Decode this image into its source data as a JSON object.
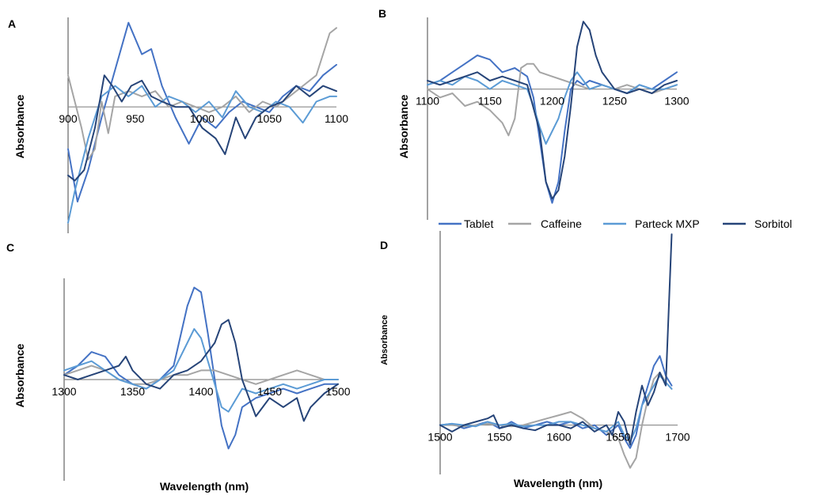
{
  "legend": {
    "placement": "top-right",
    "entries": [
      {
        "name": "Tablet",
        "color": "#4472C4"
      },
      {
        "name": "Caffeine",
        "color": "#A5A5A5"
      },
      {
        "name": "Parteck MXP",
        "color": "#5B9BD5"
      },
      {
        "name": "Sorbitol",
        "color": "#264478"
      }
    ]
  },
  "chart_data": [
    {
      "type": "line",
      "panel": "A",
      "ylabel": "Absorbance",
      "xlabel": "",
      "x_ticks": [
        "900",
        "950",
        "1000",
        "1050",
        "1100"
      ],
      "xlim": [
        900,
        1100
      ],
      "ylim": [
        -1.2,
        0.85
      ],
      "grid": false,
      "series": [
        {
          "name": "Tablet",
          "x": [
            900,
            907,
            915,
            925,
            935,
            945,
            955,
            962,
            970,
            980,
            990,
            1000,
            1010,
            1020,
            1030,
            1040,
            1050,
            1060,
            1070,
            1080,
            1090,
            1100
          ],
          "y": [
            -0.4,
            -0.9,
            -0.6,
            -0.1,
            0.35,
            0.8,
            0.5,
            0.55,
            0.2,
            -0.1,
            -0.35,
            -0.1,
            -0.2,
            -0.05,
            0.05,
            0.0,
            -0.05,
            0.1,
            0.2,
            0.15,
            0.3,
            0.4
          ]
        },
        {
          "name": "Caffeine",
          "x": [
            900,
            910,
            915,
            920,
            925,
            930,
            935,
            945,
            955,
            965,
            975,
            985,
            995,
            1005,
            1015,
            1025,
            1035,
            1045,
            1055,
            1065,
            1075,
            1085,
            1095,
            1100
          ],
          "y": [
            0.3,
            -0.2,
            -0.5,
            -0.4,
            0.05,
            -0.25,
            0.1,
            0.15,
            0.1,
            0.15,
            0.0,
            0.05,
            0.0,
            -0.05,
            0.0,
            0.1,
            -0.05,
            0.05,
            0.0,
            0.1,
            0.2,
            0.3,
            0.7,
            0.75
          ]
        },
        {
          "name": "Parteck MXP",
          "x": [
            900,
            905,
            915,
            925,
            935,
            945,
            955,
            965,
            975,
            985,
            995,
            1005,
            1015,
            1025,
            1035,
            1045,
            1055,
            1065,
            1075,
            1085,
            1095,
            1100
          ],
          "y": [
            -1.1,
            -0.8,
            -0.3,
            0.1,
            0.2,
            0.1,
            0.2,
            0.0,
            0.1,
            0.05,
            -0.05,
            0.05,
            -0.1,
            0.15,
            0.0,
            -0.05,
            0.05,
            0.0,
            -0.15,
            0.05,
            0.1,
            0.1
          ]
        },
        {
          "name": "Sorbitol",
          "x": [
            900,
            905,
            912,
            920,
            927,
            933,
            940,
            947,
            955,
            962,
            970,
            980,
            990,
            1000,
            1010,
            1017,
            1025,
            1032,
            1040,
            1050,
            1060,
            1070,
            1080,
            1090,
            1100
          ],
          "y": [
            -0.65,
            -0.7,
            -0.6,
            -0.2,
            0.3,
            0.2,
            0.05,
            0.2,
            0.25,
            0.1,
            0.05,
            0.0,
            0.0,
            -0.2,
            -0.3,
            -0.45,
            -0.1,
            -0.3,
            -0.1,
            0.0,
            0.05,
            0.2,
            0.1,
            0.2,
            0.15
          ]
        }
      ]
    },
    {
      "type": "line",
      "panel": "B",
      "ylabel": "Absorbance",
      "xlabel": "",
      "x_ticks": [
        "1100",
        "1150",
        "1200",
        "1250",
        "1300"
      ],
      "xlim": [
        1100,
        1300
      ],
      "ylim": [
        -1.55,
        0.85
      ],
      "grid": false,
      "series": [
        {
          "name": "Tablet",
          "x": [
            1100,
            1110,
            1120,
            1130,
            1140,
            1150,
            1160,
            1170,
            1180,
            1185,
            1190,
            1195,
            1200,
            1205,
            1210,
            1215,
            1220,
            1225,
            1230,
            1240,
            1250,
            1260,
            1270,
            1280,
            1290,
            1300
          ],
          "y": [
            0.05,
            0.1,
            0.2,
            0.3,
            0.4,
            0.35,
            0.2,
            0.25,
            0.15,
            -0.1,
            -0.6,
            -1.1,
            -1.35,
            -1.1,
            -0.5,
            0.0,
            0.1,
            0.05,
            0.1,
            0.05,
            0.0,
            -0.05,
            0.05,
            0.0,
            0.1,
            0.2
          ]
        },
        {
          "name": "Caffeine",
          "x": [
            1100,
            1110,
            1120,
            1130,
            1140,
            1150,
            1160,
            1165,
            1170,
            1175,
            1180,
            1185,
            1190,
            1200,
            1210,
            1220,
            1230,
            1240,
            1250,
            1260,
            1270,
            1280,
            1290,
            1300
          ],
          "y": [
            0.0,
            -0.1,
            -0.05,
            -0.2,
            -0.15,
            -0.25,
            -0.4,
            -0.55,
            -0.35,
            0.25,
            0.3,
            0.3,
            0.2,
            0.15,
            0.1,
            0.05,
            0.0,
            0.05,
            0.0,
            0.05,
            0.0,
            -0.05,
            0.0,
            0.05
          ]
        },
        {
          "name": "Parteck MXP",
          "x": [
            1100,
            1110,
            1120,
            1130,
            1140,
            1150,
            1160,
            1170,
            1180,
            1185,
            1190,
            1195,
            1200,
            1205,
            1210,
            1215,
            1220,
            1225,
            1230,
            1240,
            1250,
            1260,
            1270,
            1280,
            1290,
            1300
          ],
          "y": [
            0.05,
            0.1,
            0.05,
            0.15,
            0.1,
            0.0,
            0.1,
            0.05,
            0.0,
            -0.2,
            -0.45,
            -0.65,
            -0.5,
            -0.35,
            -0.1,
            0.1,
            0.2,
            0.1,
            0.0,
            0.05,
            0.0,
            -0.05,
            0.05,
            0.0,
            0.0,
            0.05
          ]
        },
        {
          "name": "Sorbitol",
          "x": [
            1100,
            1110,
            1120,
            1130,
            1140,
            1150,
            1160,
            1170,
            1180,
            1190,
            1195,
            1200,
            1205,
            1210,
            1215,
            1220,
            1225,
            1230,
            1235,
            1240,
            1250,
            1260,
            1270,
            1280,
            1290,
            1300
          ],
          "y": [
            0.1,
            0.05,
            0.1,
            0.15,
            0.2,
            0.1,
            0.15,
            0.1,
            0.05,
            -0.5,
            -1.1,
            -1.3,
            -1.2,
            -0.8,
            -0.2,
            0.5,
            0.8,
            0.7,
            0.4,
            0.2,
            0.0,
            -0.05,
            0.0,
            -0.05,
            0.05,
            0.1
          ]
        }
      ]
    },
    {
      "type": "line",
      "panel": "C",
      "ylabel": "Absorbance",
      "xlabel": "Wavelength (nm)",
      "x_ticks": [
        "1300",
        "1350",
        "1400",
        "1450",
        "1500"
      ],
      "xlim": [
        1300,
        1500
      ],
      "ylim": [
        -1.1,
        1.1
      ],
      "grid": false,
      "series": [
        {
          "name": "Tablet",
          "x": [
            1300,
            1310,
            1320,
            1330,
            1340,
            1350,
            1360,
            1370,
            1380,
            1390,
            1395,
            1400,
            1405,
            1410,
            1415,
            1420,
            1425,
            1430,
            1440,
            1450,
            1460,
            1470,
            1480,
            1490,
            1500
          ],
          "y": [
            0.05,
            0.15,
            0.3,
            0.25,
            0.05,
            -0.05,
            -0.1,
            0.0,
            0.15,
            0.8,
            1.0,
            0.95,
            0.5,
            0.0,
            -0.5,
            -0.75,
            -0.6,
            -0.3,
            -0.2,
            -0.15,
            -0.1,
            -0.15,
            -0.1,
            -0.05,
            -0.05
          ]
        },
        {
          "name": "Caffeine",
          "x": [
            1300,
            1310,
            1320,
            1330,
            1340,
            1350,
            1360,
            1370,
            1380,
            1390,
            1400,
            1410,
            1420,
            1430,
            1440,
            1450,
            1460,
            1470,
            1480,
            1490,
            1500
          ],
          "y": [
            0.05,
            0.1,
            0.15,
            0.1,
            0.0,
            -0.05,
            -0.05,
            0.0,
            0.05,
            0.05,
            0.1,
            0.1,
            0.05,
            0.0,
            -0.05,
            0.0,
            0.05,
            0.1,
            0.05,
            0.0,
            0.0
          ]
        },
        {
          "name": "Parteck MXP",
          "x": [
            1300,
            1310,
            1320,
            1330,
            1340,
            1350,
            1360,
            1370,
            1380,
            1390,
            1395,
            1400,
            1405,
            1410,
            1415,
            1420,
            1430,
            1440,
            1450,
            1460,
            1470,
            1480,
            1490,
            1500
          ],
          "y": [
            0.1,
            0.15,
            0.2,
            0.1,
            0.0,
            -0.05,
            -0.1,
            0.0,
            0.1,
            0.4,
            0.55,
            0.45,
            0.2,
            -0.05,
            -0.3,
            -0.35,
            -0.1,
            -0.15,
            -0.1,
            -0.05,
            -0.1,
            -0.05,
            0.0,
            0.0
          ]
        },
        {
          "name": "Sorbitol",
          "x": [
            1300,
            1310,
            1320,
            1330,
            1340,
            1345,
            1350,
            1360,
            1370,
            1380,
            1390,
            1400,
            1410,
            1415,
            1420,
            1425,
            1430,
            1440,
            1450,
            1460,
            1470,
            1475,
            1480,
            1490,
            1500
          ],
          "y": [
            0.05,
            0.0,
            0.05,
            0.1,
            0.15,
            0.25,
            0.1,
            -0.05,
            -0.1,
            0.05,
            0.1,
            0.2,
            0.4,
            0.6,
            0.65,
            0.4,
            0.0,
            -0.4,
            -0.2,
            -0.3,
            -0.2,
            -0.45,
            -0.3,
            -0.15,
            -0.05
          ]
        }
      ]
    },
    {
      "type": "line",
      "panel": "D",
      "ylabel": "Absorbance",
      "xlabel": "Wavelength (nm)",
      "x_ticks": [
        "1500",
        "1550",
        "1600",
        "1650",
        "1700"
      ],
      "xlim": [
        1500,
        1700
      ],
      "ylim": [
        -0.75,
        2.95
      ],
      "grid": false,
      "series": [
        {
          "name": "Tablet",
          "x": [
            1500,
            1510,
            1520,
            1530,
            1540,
            1550,
            1560,
            1570,
            1580,
            1590,
            1600,
            1610,
            1620,
            1630,
            1640,
            1650,
            1655,
            1660,
            1665,
            1670,
            1675,
            1680,
            1685,
            1690,
            1695
          ],
          "y": [
            0.0,
            0.02,
            -0.05,
            0.0,
            0.05,
            -0.05,
            0.05,
            -0.05,
            0.0,
            0.05,
            0.0,
            0.05,
            -0.05,
            0.0,
            -0.15,
            0.0,
            -0.2,
            -0.35,
            -0.15,
            0.3,
            0.6,
            0.9,
            1.05,
            0.75,
            0.6
          ]
        },
        {
          "name": "Caffeine",
          "x": [
            1500,
            1510,
            1520,
            1530,
            1540,
            1550,
            1560,
            1570,
            1580,
            1590,
            1600,
            1610,
            1620,
            1630,
            1640,
            1650,
            1655,
            1660,
            1665,
            1670,
            1675,
            1680,
            1685,
            1690,
            1695
          ],
          "y": [
            0.0,
            0.0,
            -0.02,
            0.0,
            0.02,
            0.0,
            -0.02,
            0.0,
            0.05,
            0.1,
            0.15,
            0.2,
            0.1,
            -0.05,
            -0.1,
            -0.2,
            -0.45,
            -0.65,
            -0.5,
            0.0,
            0.4,
            0.7,
            0.8,
            0.65,
            0.55
          ]
        },
        {
          "name": "Parteck MXP",
          "x": [
            1500,
            1510,
            1520,
            1530,
            1540,
            1550,
            1560,
            1570,
            1580,
            1590,
            1600,
            1610,
            1620,
            1630,
            1640,
            1650,
            1655,
            1660,
            1665,
            1670,
            1675,
            1680,
            1685,
            1690,
            1695
          ],
          "y": [
            0.0,
            0.02,
            0.0,
            -0.02,
            0.05,
            0.0,
            0.02,
            -0.02,
            0.0,
            0.0,
            0.05,
            0.05,
            0.0,
            -0.05,
            -0.1,
            0.05,
            -0.15,
            -0.25,
            -0.05,
            0.3,
            0.45,
            0.6,
            0.75,
            0.65,
            0.55
          ]
        },
        {
          "name": "Sorbitol",
          "x": [
            1500,
            1505,
            1510,
            1520,
            1530,
            1540,
            1545,
            1550,
            1560,
            1570,
            1580,
            1590,
            1600,
            1610,
            1620,
            1630,
            1640,
            1645,
            1650,
            1655,
            1660,
            1665,
            1670,
            1675,
            1680,
            1685,
            1690,
            1695
          ],
          "y": [
            0.0,
            -0.05,
            -0.1,
            0.0,
            0.05,
            0.1,
            0.15,
            -0.05,
            0.0,
            -0.05,
            -0.08,
            0.0,
            0.0,
            -0.05,
            0.05,
            -0.1,
            0.0,
            -0.15,
            0.2,
            0.05,
            -0.3,
            0.2,
            0.6,
            0.3,
            0.5,
            0.8,
            0.6,
            2.9
          ]
        }
      ]
    }
  ]
}
